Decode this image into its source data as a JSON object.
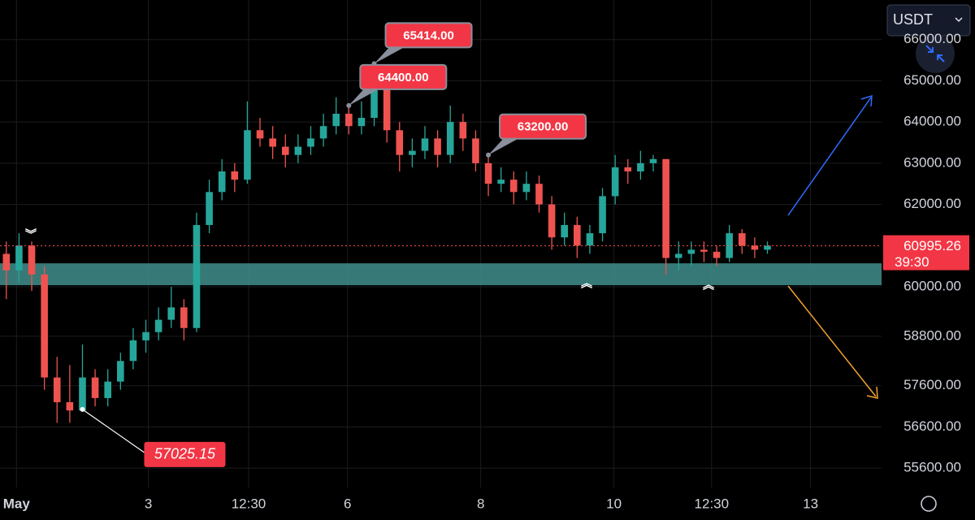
{
  "chart_data": {
    "type": "candlestick",
    "currency": "USDT",
    "up_color": "#26a69a",
    "down_color": "#ef5350",
    "open": [
      60800,
      60400,
      61000,
      60300,
      57800,
      57200,
      57000,
      57800,
      57300,
      57700,
      58200,
      58700,
      58900,
      59200,
      59500,
      59000,
      61500,
      62300,
      62800,
      62600,
      63800,
      63600,
      63400,
      63200,
      63400,
      63600,
      63900,
      64200,
      63900,
      64100,
      64800,
      63800,
      63200,
      63300,
      63600,
      63200,
      64000,
      63600,
      63000,
      62500,
      62600,
      62300,
      62500,
      62000,
      61200,
      61500,
      61000,
      61300,
      62200,
      62900,
      62800,
      63000,
      63100,
      60700,
      60800,
      60900,
      60850,
      60700,
      61300,
      61000,
      60900
    ],
    "high": [
      61100,
      61300,
      61100,
      60500,
      58300,
      58100,
      58600,
      58000,
      58000,
      58400,
      59000,
      59200,
      59500,
      60000,
      59700,
      61800,
      62600,
      63100,
      63000,
      64500,
      64100,
      63900,
      63700,
      63700,
      63900,
      64200,
      64600,
      64400,
      64500,
      65414,
      65000,
      64000,
      63600,
      63900,
      63800,
      64400,
      64200,
      63800,
      63200,
      62900,
      62800,
      62800,
      62700,
      62200,
      61800,
      61700,
      61500,
      62400,
      63200,
      63100,
      63300,
      63200,
      63100,
      61100,
      61100,
      61100,
      61000,
      61500,
      61400,
      61200,
      61100
    ],
    "low": [
      59700,
      60100,
      59900,
      57500,
      56700,
      56700,
      57025.15,
      57100,
      57100,
      57500,
      58000,
      58400,
      58700,
      59000,
      58700,
      58900,
      61300,
      62100,
      62300,
      62500,
      63400,
      63100,
      62900,
      63000,
      63200,
      63400,
      63700,
      63700,
      63700,
      63900,
      63500,
      62800,
      62900,
      63100,
      62900,
      63000,
      63300,
      62800,
      62200,
      62300,
      62000,
      62100,
      61800,
      60900,
      61000,
      60700,
      60800,
      61100,
      62000,
      62500,
      62600,
      62800,
      60300,
      60400,
      60500,
      60600,
      60500,
      60600,
      60800,
      60700,
      60800
    ],
    "close": [
      60400,
      61000,
      60300,
      57800,
      57200,
      57000,
      57800,
      57300,
      57700,
      58200,
      58700,
      58900,
      59200,
      59500,
      59000,
      61500,
      62300,
      62800,
      62600,
      63800,
      63600,
      63400,
      63200,
      63400,
      63600,
      63900,
      64200,
      63900,
      64100,
      64800,
      63800,
      63200,
      63300,
      63600,
      63200,
      64000,
      63600,
      63000,
      62500,
      62600,
      62300,
      62500,
      62000,
      61200,
      61500,
      61000,
      61300,
      62200,
      62900,
      62800,
      63000,
      63100,
      60700,
      60800,
      60900,
      60850,
      60700,
      61300,
      61000,
      60900,
      60995.26
    ],
    "xlim": [
      -0.5,
      69
    ],
    "xticks": [
      {
        "value": 0.8,
        "label": "May"
      },
      {
        "value": 11.2,
        "label": "3"
      },
      {
        "value": 19.1,
        "label": "12:30"
      },
      {
        "value": 26.9,
        "label": "6"
      },
      {
        "value": 37.4,
        "label": "8"
      },
      {
        "value": 47.9,
        "label": "10"
      },
      {
        "value": 55.6,
        "label": "12:30"
      },
      {
        "value": 63.4,
        "label": "13"
      }
    ],
    "ylim": [
      55130,
      66960
    ],
    "yticks": [
      {
        "value": 66000,
        "label": "66000.00"
      },
      {
        "value": 65000,
        "label": "65000.00"
      },
      {
        "value": 64000,
        "label": "64000.00"
      },
      {
        "value": 63000,
        "label": "63000.00"
      },
      {
        "value": 62000,
        "label": "62000.00"
      },
      {
        "value": 60000,
        "label": "60000.00"
      },
      {
        "value": 58800,
        "label": "58800.00"
      },
      {
        "value": 57600,
        "label": "57600.00"
      },
      {
        "value": 56600,
        "label": "56600.00"
      },
      {
        "value": 55600,
        "label": "55600.00"
      }
    ],
    "grid": true,
    "zone": [
      60040,
      60570
    ],
    "last_price": {
      "value": 60995.26,
      "label": "60995.26"
    },
    "countdown": "39:30",
    "callouts": [
      {
        "value": 65414,
        "label": "65414.00"
      },
      {
        "value": 64400,
        "label": "64400.00"
      },
      {
        "value": 63200,
        "label": "63200.00"
      },
      {
        "value": 57025.15,
        "label": "57025.15"
      }
    ]
  }
}
